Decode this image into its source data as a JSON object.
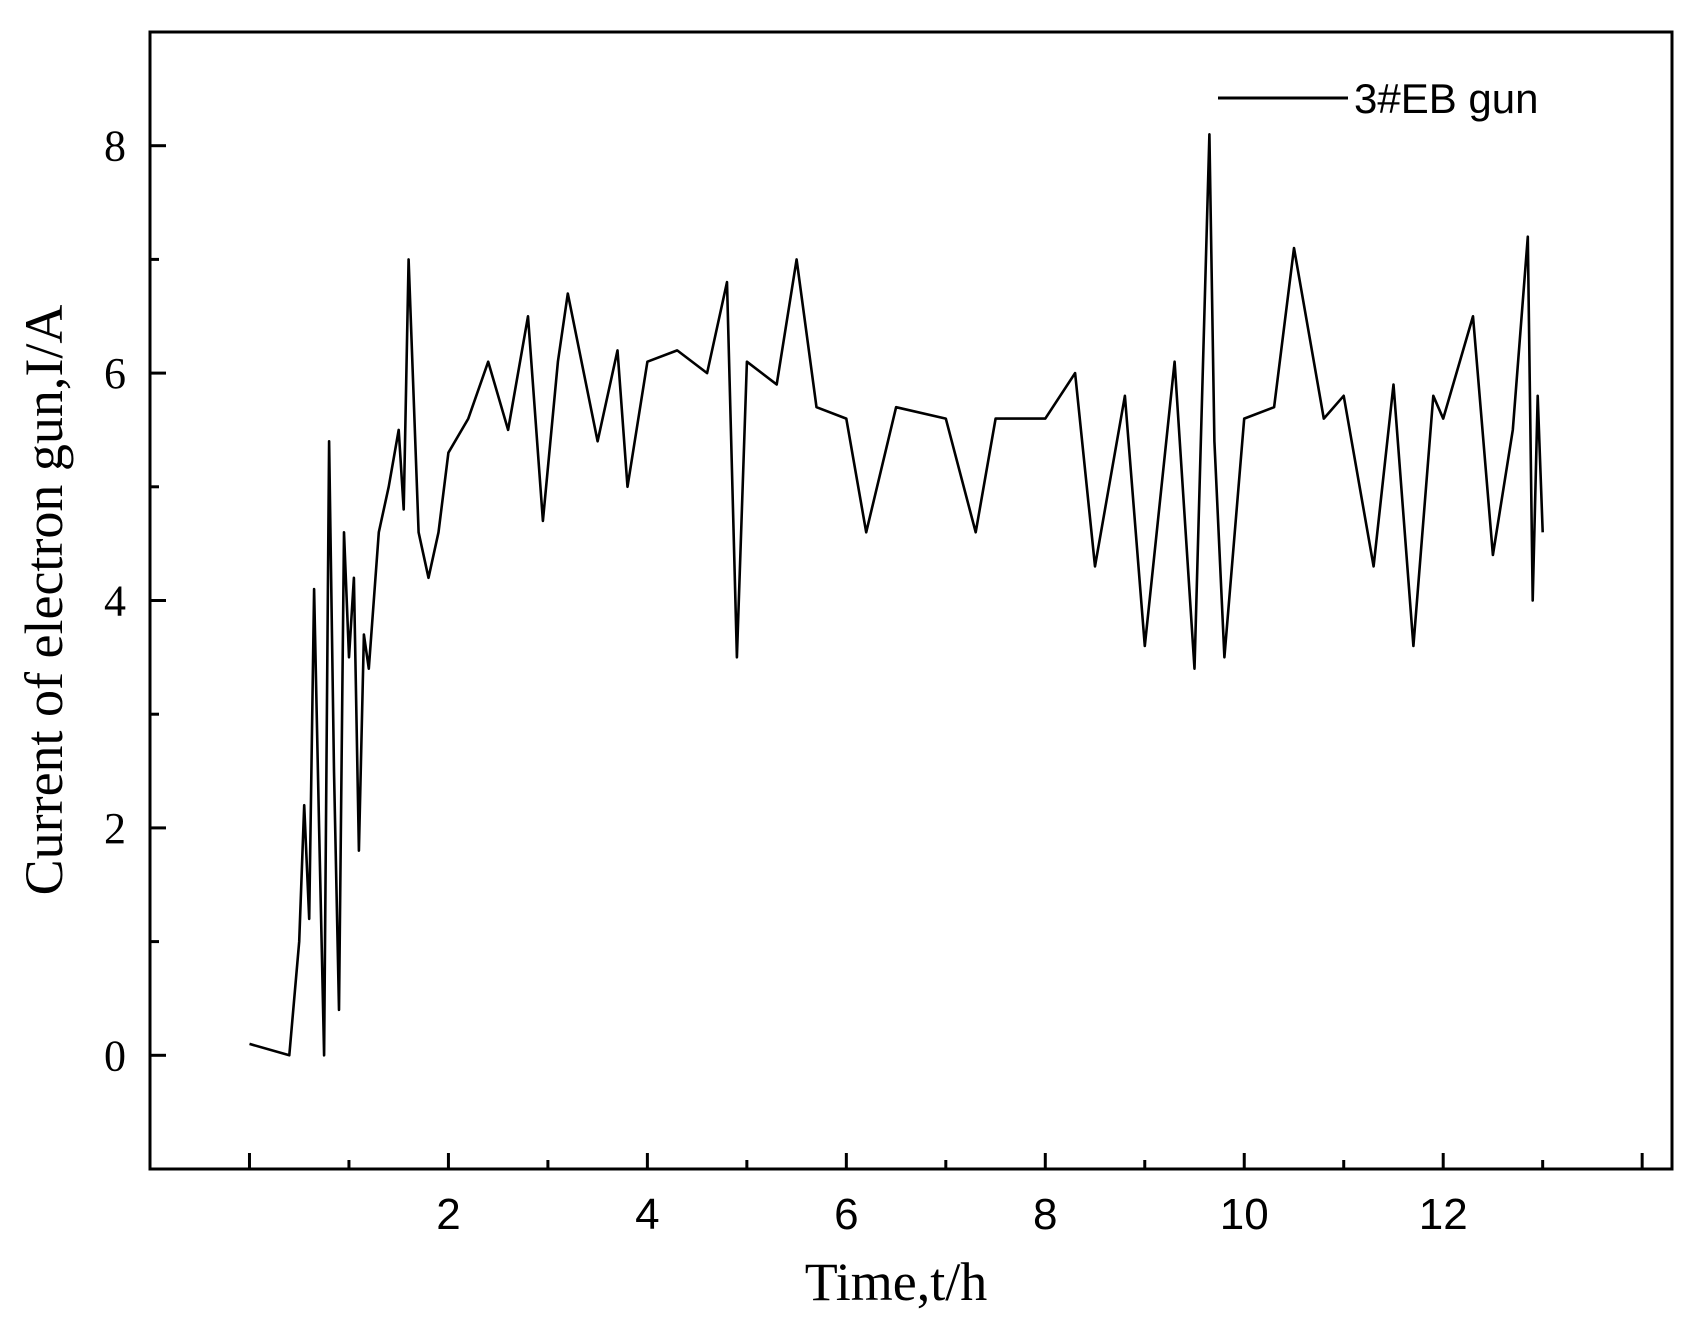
{
  "chart_data": {
    "type": "line",
    "xlabel": "Time,t/h",
    "ylabel": "Current of electron gun,I/A",
    "xlim": [
      -1.0,
      14.3
    ],
    "ylim": [
      -1.0,
      9.0
    ],
    "x_ticks": [
      2,
      4,
      6,
      8,
      10,
      12
    ],
    "y_ticks": [
      0,
      2,
      4,
      6,
      8
    ],
    "legend_position": "top-right",
    "grid": false,
    "series": [
      {
        "name": "3#EB gun",
        "color": "#000000",
        "x": [
          0.0,
          0.4,
          0.5,
          0.55,
          0.6,
          0.65,
          0.7,
          0.75,
          0.8,
          0.85,
          0.9,
          0.95,
          1.0,
          1.05,
          1.1,
          1.15,
          1.2,
          1.3,
          1.4,
          1.5,
          1.55,
          1.6,
          1.7,
          1.8,
          1.9,
          2.0,
          2.2,
          2.4,
          2.6,
          2.8,
          2.95,
          3.1,
          3.2,
          3.5,
          3.7,
          3.8,
          4.0,
          4.3,
          4.6,
          4.8,
          4.9,
          5.0,
          5.3,
          5.5,
          5.7,
          6.0,
          6.2,
          6.5,
          7.0,
          7.3,
          7.5,
          8.0,
          8.3,
          8.5,
          8.8,
          9.0,
          9.3,
          9.5,
          9.65,
          9.7,
          9.8,
          10.0,
          10.3,
          10.5,
          10.8,
          11.0,
          11.3,
          11.5,
          11.7,
          11.9,
          12.0,
          12.3,
          12.5,
          12.7,
          12.85,
          12.9,
          12.95,
          13.0
        ],
        "values": [
          0.1,
          0.0,
          1.0,
          2.2,
          1.2,
          4.1,
          2.0,
          0.0,
          5.4,
          2.5,
          0.4,
          4.6,
          3.5,
          4.2,
          1.8,
          3.7,
          3.4,
          4.6,
          5.0,
          5.5,
          4.8,
          7.0,
          4.6,
          4.2,
          4.6,
          5.3,
          5.6,
          6.1,
          5.5,
          6.5,
          4.7,
          6.1,
          6.7,
          5.4,
          6.2,
          5.0,
          6.1,
          6.2,
          6.0,
          6.8,
          3.5,
          6.1,
          5.9,
          7.0,
          5.7,
          5.6,
          4.6,
          5.7,
          5.6,
          4.6,
          5.6,
          5.6,
          6.0,
          4.3,
          5.8,
          3.6,
          6.1,
          3.4,
          8.1,
          5.4,
          3.5,
          5.6,
          5.7,
          7.1,
          5.6,
          5.8,
          4.3,
          5.9,
          3.6,
          5.8,
          5.6,
          6.5,
          4.4,
          5.5,
          7.2,
          4.0,
          5.8,
          4.6
        ]
      }
    ]
  }
}
